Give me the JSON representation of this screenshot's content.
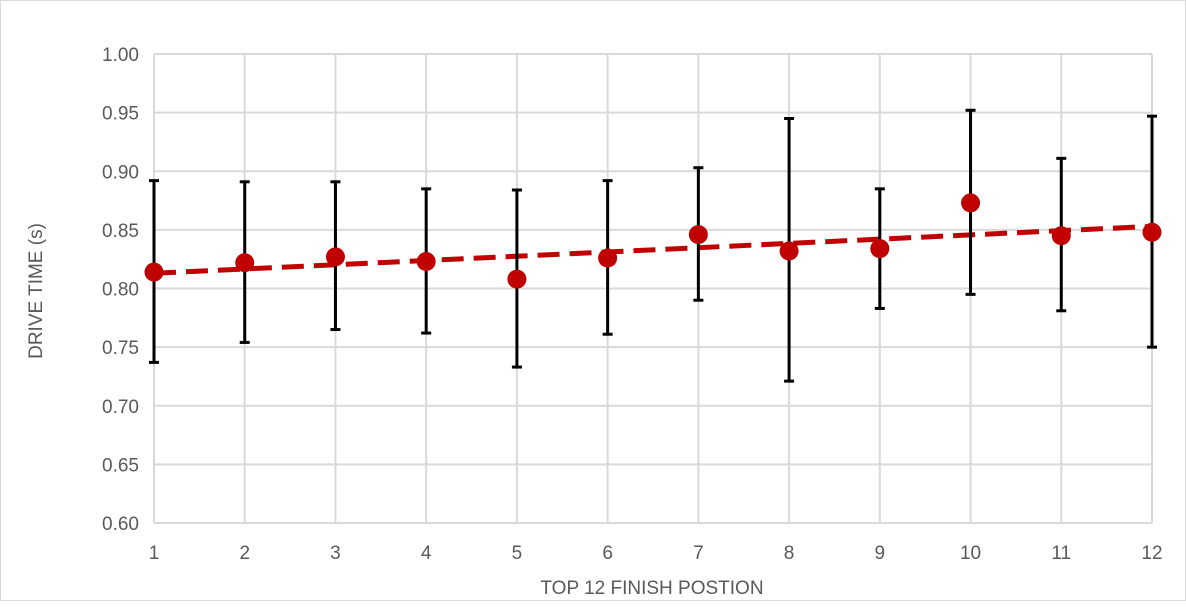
{
  "chart_data": {
    "type": "scatter",
    "title": "",
    "xlabel": "TOP 12 FINISH POSTION",
    "ylabel": "DRIVE TIME (s)",
    "xlim": [
      1,
      12
    ],
    "ylim": [
      0.6,
      1.0
    ],
    "x_ticks": [
      "1",
      "2",
      "3",
      "4",
      "5",
      "6",
      "7",
      "8",
      "9",
      "10",
      "11",
      "12"
    ],
    "y_ticks": [
      "0.60",
      "0.65",
      "0.70",
      "0.75",
      "0.80",
      "0.85",
      "0.90",
      "0.95",
      "1.00"
    ],
    "grid": true,
    "legend": "none",
    "series": [
      {
        "x": [
          1,
          2,
          3,
          4,
          5,
          6,
          7,
          8,
          9,
          10,
          11,
          12
        ],
        "y": [
          0.814,
          0.822,
          0.827,
          0.823,
          0.808,
          0.826,
          0.846,
          0.832,
          0.834,
          0.873,
          0.845,
          0.848
        ],
        "error_low": [
          0.737,
          0.754,
          0.765,
          0.762,
          0.733,
          0.761,
          0.79,
          0.721,
          0.783,
          0.795,
          0.781,
          0.75
        ],
        "error_high": [
          0.892,
          0.891,
          0.891,
          0.885,
          0.884,
          0.892,
          0.903,
          0.945,
          0.885,
          0.952,
          0.911,
          0.947
        ],
        "marker_color": "#c00000",
        "error_bar_color": "#000000"
      }
    ],
    "trendline": {
      "type": "linear",
      "x": [
        1,
        12
      ],
      "y": [
        0.813,
        0.853
      ],
      "color": "#c00000",
      "style": "dashed"
    },
    "colors": {
      "grid": "#d9d9d9",
      "axis_text": "#595959"
    }
  }
}
